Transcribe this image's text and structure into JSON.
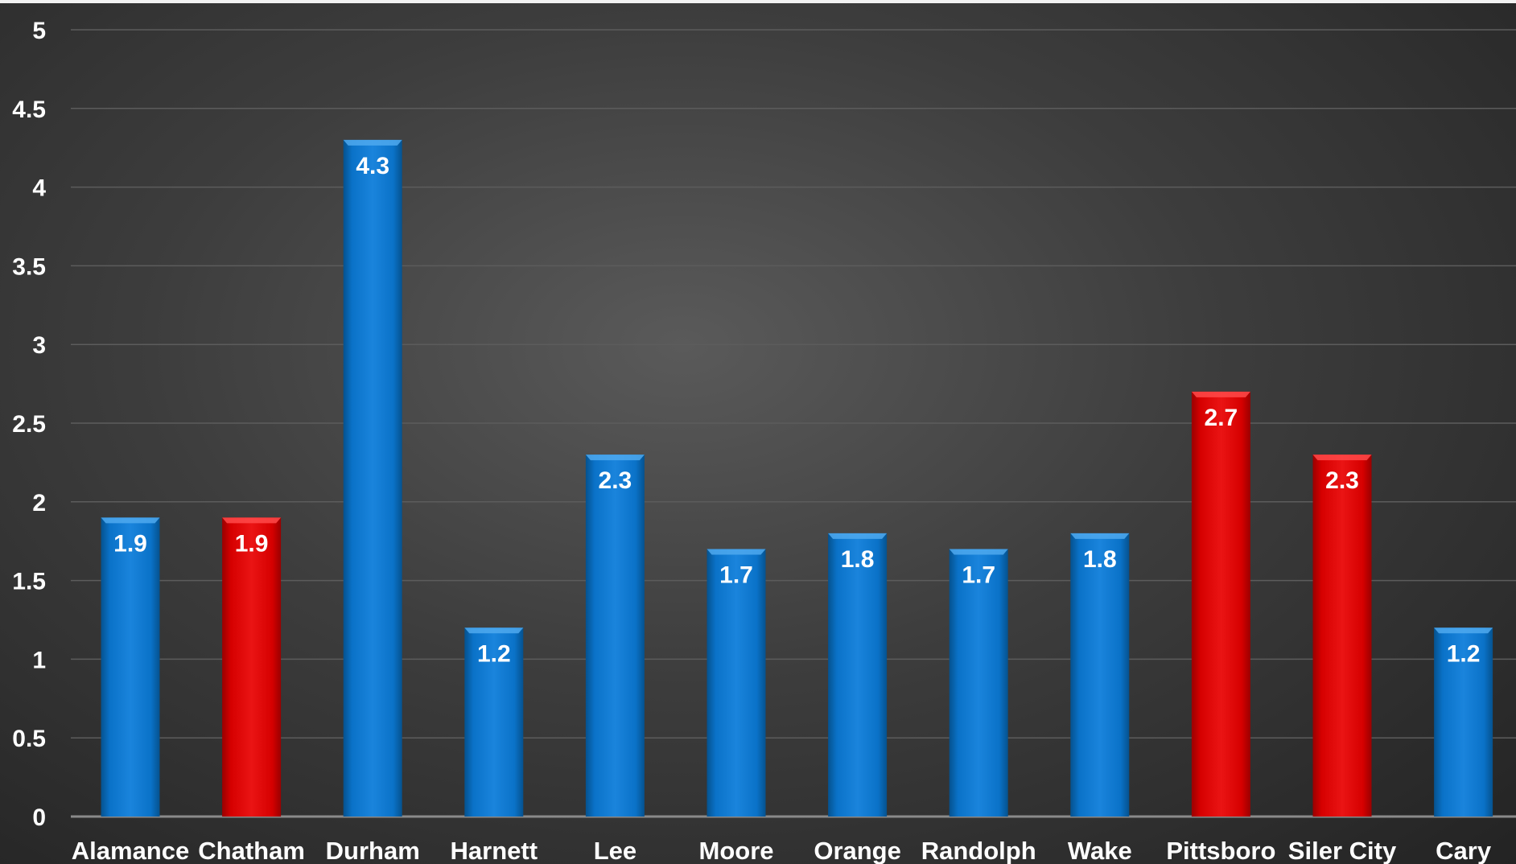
{
  "chart_data": {
    "type": "bar",
    "title": "",
    "xlabel": "",
    "ylabel": "",
    "categories": [
      "Alamance",
      "Chatham",
      "Durham",
      "Harnett",
      "Lee",
      "Moore",
      "Orange",
      "Randolph",
      "Wake",
      "Pittsboro",
      "Siler City",
      "Cary"
    ],
    "values": [
      1.9,
      1.9,
      4.3,
      1.2,
      2.3,
      1.7,
      1.8,
      1.7,
      1.8,
      2.7,
      2.3,
      1.2
    ],
    "bar_colors": [
      "#0a72c8",
      "#d60000",
      "#0a72c8",
      "#0a72c8",
      "#0a72c8",
      "#0a72c8",
      "#0a72c8",
      "#0a72c8",
      "#0a72c8",
      "#d60000",
      "#d60000",
      "#0a72c8"
    ],
    "data_labels": [
      "1.9",
      "1.9",
      "4.3",
      "1.2",
      "2.3",
      "1.7",
      "1.8",
      "1.7",
      "1.8",
      "2.7",
      "2.3",
      "1.2"
    ],
    "y_ticks": [
      "0",
      "0.5",
      "1",
      "1.5",
      "2",
      "2.5",
      "3",
      "3.5",
      "4",
      "4.5",
      "5"
    ],
    "ylim": [
      0,
      5
    ],
    "grid": true,
    "legend": "none",
    "colors": {
      "blue": "#0a72c8",
      "red": "#d60000",
      "gridline": "#5c5c5c",
      "axis": "#8a8a8a",
      "text": "#ffffff"
    }
  }
}
